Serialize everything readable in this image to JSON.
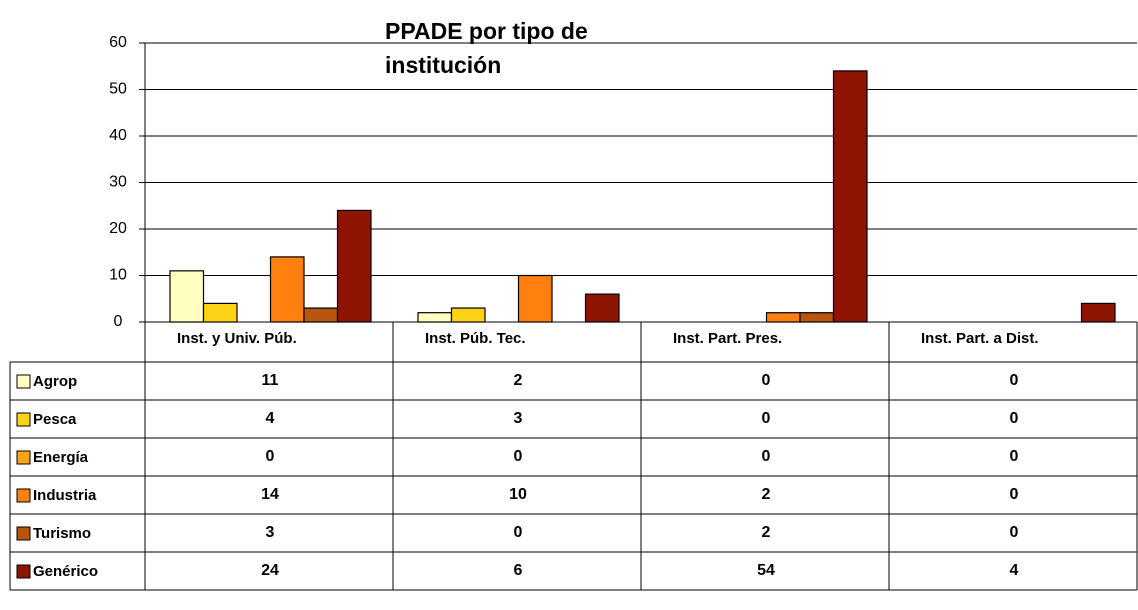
{
  "chart_data": {
    "type": "bar",
    "title": "PPADE por tipo de institución",
    "categories": [
      "Inst. y Univ. Púb.",
      "Inst. Púb. Tec.",
      "Inst. Part. Pres.",
      "Inst. Part. a Dist."
    ],
    "series": [
      {
        "name": "Agrop",
        "color": "#ffffc0",
        "values": [
          11,
          2,
          0,
          0
        ]
      },
      {
        "name": "Pesca",
        "color": "#ffd21a",
        "values": [
          4,
          3,
          0,
          0
        ]
      },
      {
        "name": "Energía",
        "color": "#ffa31a",
        "values": [
          0,
          0,
          0,
          0
        ]
      },
      {
        "name": "Industria",
        "color": "#ff7f0f",
        "values": [
          14,
          10,
          2,
          0
        ]
      },
      {
        "name": "Turismo",
        "color": "#b8560f",
        "values": [
          3,
          0,
          2,
          0
        ]
      },
      {
        "name": "Genérico",
        "color": "#8c1400",
        "values": [
          24,
          6,
          54,
          4
        ]
      }
    ],
    "ylim": [
      0,
      60
    ],
    "yticks": [
      0,
      10,
      20,
      30,
      40,
      50,
      60
    ],
    "grid": true
  }
}
